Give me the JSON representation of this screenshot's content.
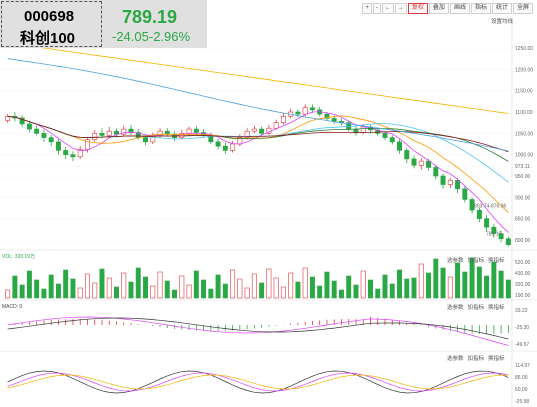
{
  "stock": {
    "code": "000698",
    "name": "科创100",
    "price": "789.19",
    "change": "-24.05-2.96%",
    "color_down": "#2aa845",
    "color_up": "#e0393e"
  },
  "toolbar": {
    "items": [
      "+",
      "-",
      "←",
      "→",
      "复权",
      "叠加",
      "画线",
      "指标",
      "统计",
      "全屏"
    ],
    "active_index": 4,
    "settings_label": "设置均线"
  },
  "price_axis": {
    "ticks": [
      "1250.00",
      "1200.00",
      "1150.00",
      "1100.00",
      "1050.00",
      "1000.00",
      "973.11",
      "950.00",
      "900.00",
      "850.00",
      "800.00"
    ],
    "annotations": {
      "high_marker": "803.74-876.96",
      "low_marker": "789.19"
    }
  },
  "volume": {
    "label": "VOL: 320.19万",
    "axis": [
      "520.00",
      "430.00",
      "320.00",
      "190.00"
    ]
  },
  "macd": {
    "label": "MACD: 0",
    "axis": [
      "33.22",
      "-25.30",
      "-49.57"
    ]
  },
  "kdj": {
    "axis": [
      "114.97",
      "86.00",
      "50.00",
      "-25.98"
    ]
  },
  "panel_links": [
    "选参数",
    "加指标",
    "换指标"
  ],
  "chart_data": {
    "type": "candlestick",
    "ylim": [
      780,
      1270
    ],
    "note_series": [
      "MA5",
      "MA10",
      "MA20",
      "MA30",
      "MA60",
      "MA120"
    ],
    "candles": [
      [
        1080,
        1090,
        1095,
        1075
      ],
      [
        1090,
        1086,
        1100,
        1078
      ],
      [
        1086,
        1072,
        1092,
        1065
      ],
      [
        1072,
        1060,
        1080,
        1052
      ],
      [
        1060,
        1050,
        1068,
        1045
      ],
      [
        1050,
        1040,
        1058,
        1030
      ],
      [
        1040,
        1030,
        1046,
        1020
      ],
      [
        1030,
        1010,
        1036,
        1000
      ],
      [
        1010,
        1000,
        1018,
        990
      ],
      [
        1000,
        995,
        1008,
        985
      ],
      [
        995,
        1012,
        1020,
        990
      ],
      [
        1012,
        1035,
        1042,
        1005
      ],
      [
        1035,
        1050,
        1058,
        1030
      ],
      [
        1050,
        1045,
        1062,
        1038
      ],
      [
        1045,
        1055,
        1065,
        1040
      ],
      [
        1055,
        1048,
        1062,
        1040
      ],
      [
        1048,
        1060,
        1068,
        1045
      ],
      [
        1060,
        1052,
        1070,
        1046
      ],
      [
        1052,
        1040,
        1060,
        1035
      ],
      [
        1040,
        1030,
        1048,
        1022
      ],
      [
        1030,
        1045,
        1052,
        1025
      ],
      [
        1045,
        1055,
        1062,
        1040
      ],
      [
        1055,
        1048,
        1062,
        1042
      ],
      [
        1048,
        1040,
        1055,
        1032
      ],
      [
        1040,
        1050,
        1058,
        1036
      ],
      [
        1050,
        1060,
        1066,
        1045
      ],
      [
        1060,
        1052,
        1068,
        1046
      ],
      [
        1052,
        1045,
        1060,
        1040
      ],
      [
        1045,
        1030,
        1052,
        1025
      ],
      [
        1030,
        1020,
        1038,
        1012
      ],
      [
        1020,
        1010,
        1028,
        1002
      ],
      [
        1010,
        1025,
        1032,
        1005
      ],
      [
        1025,
        1040,
        1048,
        1020
      ],
      [
        1040,
        1055,
        1062,
        1035
      ],
      [
        1055,
        1060,
        1068,
        1050
      ],
      [
        1060,
        1050,
        1066,
        1045
      ],
      [
        1050,
        1062,
        1070,
        1046
      ],
      [
        1062,
        1075,
        1082,
        1058
      ],
      [
        1075,
        1090,
        1098,
        1070
      ],
      [
        1090,
        1100,
        1108,
        1085
      ],
      [
        1100,
        1095,
        1106,
        1088
      ],
      [
        1095,
        1110,
        1118,
        1090
      ],
      [
        1110,
        1105,
        1118,
        1098
      ],
      [
        1105,
        1095,
        1112,
        1090
      ],
      [
        1095,
        1085,
        1100,
        1080
      ],
      [
        1085,
        1078,
        1092,
        1072
      ],
      [
        1078,
        1075,
        1085,
        1068
      ],
      [
        1075,
        1060,
        1080,
        1055
      ],
      [
        1060,
        1052,
        1068,
        1045
      ],
      [
        1052,
        1065,
        1072,
        1048
      ],
      [
        1065,
        1058,
        1070,
        1050
      ],
      [
        1058,
        1050,
        1064,
        1044
      ],
      [
        1050,
        1040,
        1056,
        1034
      ],
      [
        1040,
        1030,
        1046,
        1024
      ],
      [
        1030,
        1010,
        1036,
        1002
      ],
      [
        1010,
        990,
        1016,
        980
      ],
      [
        990,
        975,
        998,
        968
      ],
      [
        975,
        985,
        992,
        965
      ],
      [
        985,
        970,
        990,
        962
      ],
      [
        970,
        950,
        976,
        942
      ],
      [
        950,
        930,
        956,
        920
      ],
      [
        930,
        940,
        946,
        922
      ],
      [
        940,
        920,
        946,
        910
      ],
      [
        920,
        895,
        926,
        888
      ],
      [
        895,
        870,
        900,
        862
      ],
      [
        870,
        850,
        876,
        842
      ],
      [
        850,
        830,
        858,
        820
      ],
      [
        830,
        815,
        838,
        805
      ],
      [
        815,
        803,
        822,
        795
      ],
      [
        803,
        789,
        808,
        785
      ]
    ]
  }
}
